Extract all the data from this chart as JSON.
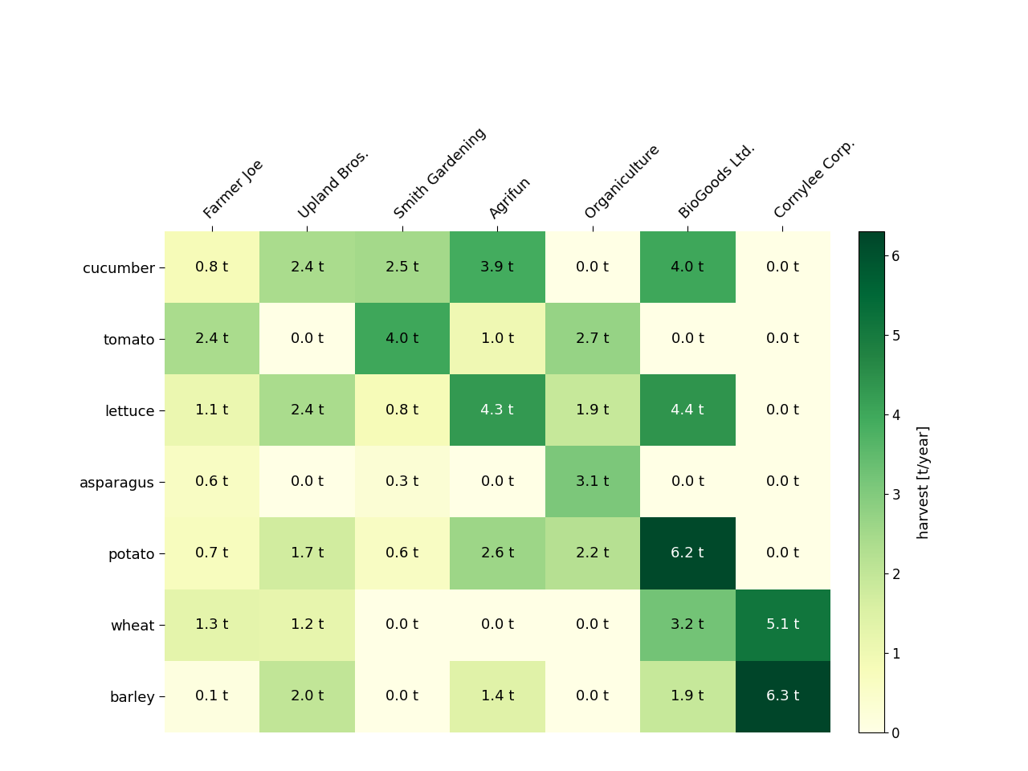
{
  "rows": [
    "cucumber",
    "tomato",
    "lettuce",
    "asparagus",
    "potato",
    "wheat",
    "barley"
  ],
  "cols": [
    "Farmer Joe",
    "Upland Bros.",
    "Smith Gardening",
    "Agrifun",
    "Organiculture",
    "BioGoods Ltd.",
    "Cornylee Corp."
  ],
  "values": [
    [
      0.8,
      2.4,
      2.5,
      3.9,
      0.0,
      4.0,
      0.0
    ],
    [
      2.4,
      0.0,
      4.0,
      1.0,
      2.7,
      0.0,
      0.0
    ],
    [
      1.1,
      2.4,
      0.8,
      4.3,
      1.9,
      4.4,
      0.0
    ],
    [
      0.6,
      0.0,
      0.3,
      0.0,
      3.1,
      0.0,
      0.0
    ],
    [
      0.7,
      1.7,
      0.6,
      2.6,
      2.2,
      6.2,
      0.0
    ],
    [
      1.3,
      1.2,
      0.0,
      0.0,
      0.0,
      3.2,
      5.1
    ],
    [
      0.1,
      2.0,
      0.0,
      1.4,
      0.0,
      1.9,
      6.3
    ]
  ],
  "cmap": "YlGn",
  "vmin": 0,
  "vmax": 6.3,
  "colorbar_label": "harvest [t/year]",
  "colorbar_ticks": [
    0,
    1,
    2,
    3,
    4,
    5,
    6
  ],
  "figsize": [
    12.8,
    9.6
  ],
  "dpi": 100,
  "text_fontsize": 13,
  "label_fontsize": 13,
  "background_color": "#ffffff"
}
